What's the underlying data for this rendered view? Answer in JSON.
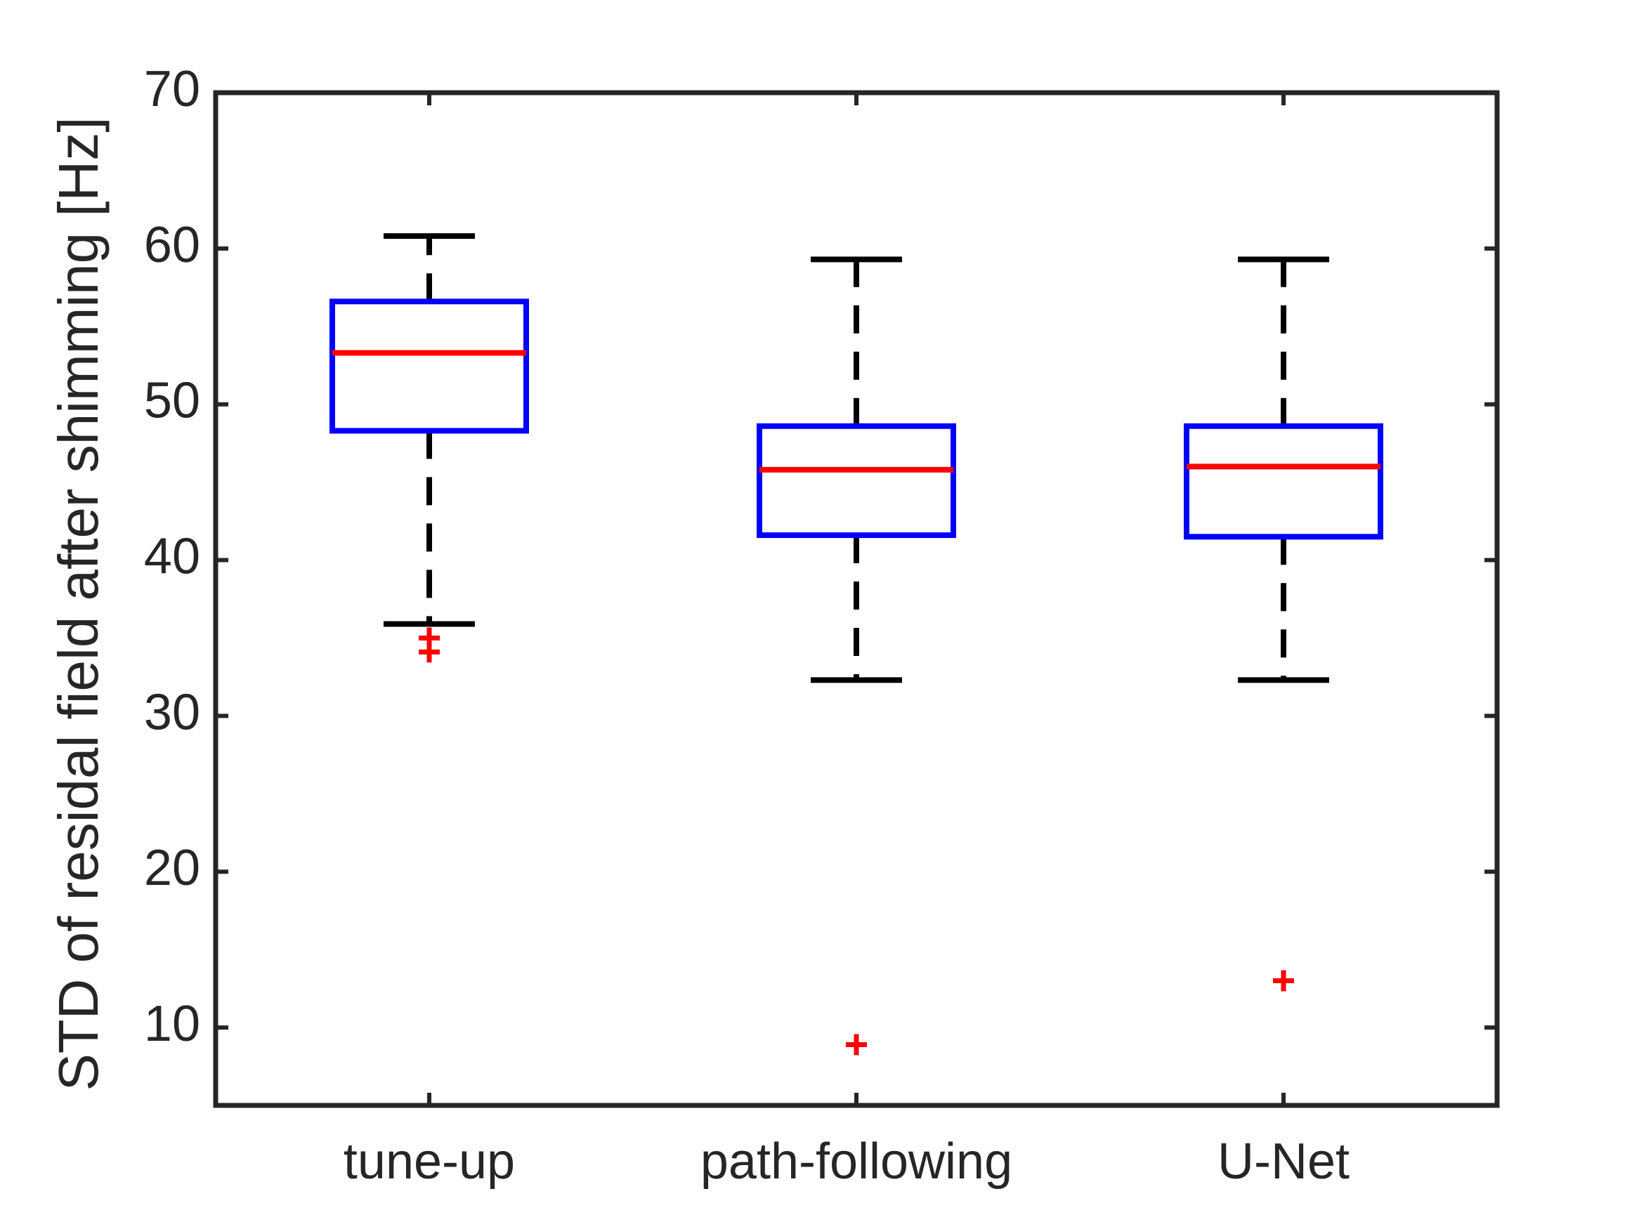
{
  "chart_data": {
    "type": "box",
    "ylabel": "STD of residal field after shimming [Hz]",
    "categories": [
      "tune-up",
      "path-following",
      "U-Net"
    ],
    "boxes": [
      {
        "whisker_low": 35.9,
        "q1": 48.3,
        "median": 53.3,
        "q3": 56.6,
        "whisker_high": 60.8,
        "outliers": [
          35.0,
          34.1
        ]
      },
      {
        "whisker_low": 32.3,
        "q1": 41.6,
        "median": 45.8,
        "q3": 48.6,
        "whisker_high": 59.3,
        "outliers": [
          8.9
        ]
      },
      {
        "whisker_low": 32.3,
        "q1": 41.5,
        "median": 46.0,
        "q3": 48.6,
        "whisker_high": 59.3,
        "outliers": [
          13.0
        ]
      }
    ],
    "box_color": "#0000ff",
    "median_color": "#ff0000",
    "whisker_color": "#000000",
    "outlier_color": "#ff0000",
    "ylim": [
      5,
      70
    ],
    "yticks": [
      10,
      20,
      30,
      40,
      50,
      60,
      70
    ],
    "grid": false
  }
}
